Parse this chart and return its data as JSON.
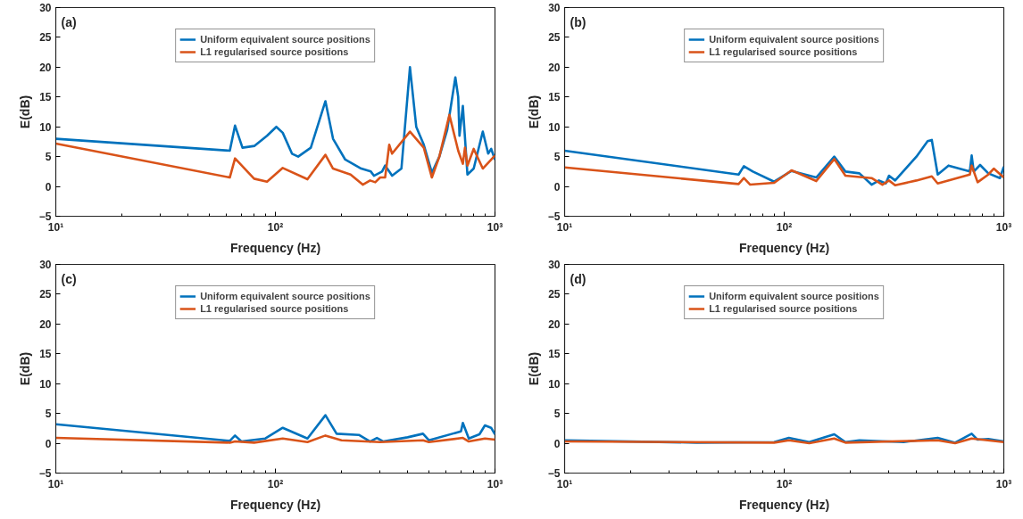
{
  "chart_data": [
    {
      "type": "line",
      "annotations": [
        "(a)"
      ],
      "xlabel": "Frequency (Hz)",
      "ylabel": "E(dB)",
      "log": "x",
      "xlim": [
        10,
        1000
      ],
      "ylim": [
        -5,
        30
      ],
      "xticks": [
        {
          "value": 10,
          "label": "10¹"
        },
        {
          "value": 100,
          "label": "10²"
        },
        {
          "value": 1000,
          "label": "10³"
        }
      ],
      "yticks": [
        -5,
        0,
        5,
        10,
        15,
        20,
        25,
        30
      ],
      "grid": false,
      "legend": "top",
      "line_style": "solid",
      "marker": "none",
      "series": [
        {
          "name": "Uniform equivalent source positions",
          "color": "#0072bd",
          "x": [
            10,
            62,
            65.5,
            70.8,
            80.4,
            91.6,
            101,
            108,
            119,
            127,
            145,
            169,
            183,
            208,
            246,
            272,
            281,
            306,
            316,
            330,
            340,
            375,
            410,
            438,
            474,
            516,
            558,
            606,
            660,
            680,
            689,
            714,
            749,
            800,
            880,
            931,
            961,
            1000
          ],
          "values": [
            8,
            6,
            10.2,
            6.5,
            6.8,
            8.5,
            10,
            9,
            5.5,
            5,
            6.5,
            14.3,
            8,
            4.5,
            3,
            2.5,
            1.8,
            2.5,
            3.5,
            2.5,
            1.8,
            3,
            20,
            10,
            7,
            2.3,
            5,
            9.5,
            18.3,
            15,
            8.5,
            13.5,
            2,
            3,
            9.2,
            5.5,
            6.3,
            4.5
          ]
        },
        {
          "name": "L1 regularised source positions",
          "color": "#d95319",
          "x": [
            10,
            62,
            65.5,
            80,
            91.6,
            108,
            140,
            169,
            183,
            220,
            250,
            270,
            285,
            300,
            316,
            330,
            340,
            410,
            474,
            516,
            558,
            620,
            680,
            714,
            730,
            749,
            800,
            880,
            1000
          ],
          "values": [
            7.2,
            1.5,
            4.7,
            1.3,
            0.8,
            3.1,
            1.2,
            5.3,
            3,
            2,
            0.3,
            1,
            0.7,
            1.5,
            1.5,
            7,
            5.5,
            9.2,
            6.5,
            1.5,
            5,
            12,
            6,
            3.8,
            6.5,
            3.5,
            6.3,
            3,
            5.2
          ]
        }
      ]
    },
    {
      "type": "line",
      "annotations": [
        "(b)"
      ],
      "xlabel": "Frequency (Hz)",
      "ylabel": "E(dB)",
      "log": "x",
      "xlim": [
        10,
        1000
      ],
      "ylim": [
        -5,
        30
      ],
      "xticks": [
        {
          "value": 10,
          "label": "10¹"
        },
        {
          "value": 100,
          "label": "10²"
        },
        {
          "value": 1000,
          "label": "10³"
        }
      ],
      "yticks": [
        -5,
        0,
        5,
        10,
        15,
        20,
        25,
        30
      ],
      "grid": false,
      "legend": "top",
      "line_style": "solid",
      "marker": "none",
      "series": [
        {
          "name": "Uniform equivalent source positions",
          "color": "#0072bd",
          "x": [
            10,
            62,
            65.5,
            72,
            90,
            108,
            140,
            169,
            190,
            220,
            250,
            270,
            290,
            300,
            320,
            400,
            450,
            470,
            500,
            560,
            700,
            714,
            730,
            780,
            850,
            960,
            1000
          ],
          "values": [
            6,
            2,
            3.4,
            2.5,
            0.8,
            2.6,
            1.5,
            5,
            2.5,
            2.2,
            0.3,
            1,
            0.5,
            1.8,
            1,
            5,
            7.6,
            7.8,
            2,
            3.5,
            2.5,
            5.2,
            2.5,
            3.6,
            2.2,
            1.4,
            3.3
          ]
        },
        {
          "name": "L1 regularised source positions",
          "color": "#d95319",
          "x": [
            10,
            62,
            65.5,
            70,
            90,
            108,
            140,
            169,
            190,
            250,
            280,
            300,
            320,
            400,
            470,
            500,
            700,
            714,
            760,
            850,
            900,
            1000
          ],
          "values": [
            3.2,
            0.4,
            1.4,
            0.3,
            0.6,
            2.7,
            0.9,
            4.6,
            1.8,
            1.4,
            0.3,
            1,
            0.2,
            1,
            1.7,
            0.5,
            2,
            3.5,
            0.7,
            2,
            3,
            1.5
          ]
        }
      ]
    },
    {
      "type": "line",
      "annotations": [
        "(c)"
      ],
      "xlabel": "Frequency (Hz)",
      "ylabel": "E(dB)",
      "log": "x",
      "xlim": [
        10,
        1000
      ],
      "ylim": [
        -5,
        30
      ],
      "xticks": [
        {
          "value": 10,
          "label": "10¹"
        },
        {
          "value": 100,
          "label": "10²"
        },
        {
          "value": 1000,
          "label": "10³"
        }
      ],
      "yticks": [
        -5,
        0,
        5,
        10,
        15,
        20,
        25,
        30
      ],
      "grid": false,
      "legend": "top",
      "line_style": "solid",
      "marker": "none",
      "series": [
        {
          "name": "Uniform equivalent source positions",
          "color": "#0072bd",
          "x": [
            10,
            62,
            65.5,
            70,
            90,
            108,
            140,
            169,
            190,
            240,
            270,
            290,
            310,
            400,
            470,
            500,
            700,
            714,
            760,
            850,
            900,
            960,
            1000
          ],
          "values": [
            3.2,
            0.4,
            1.3,
            0.3,
            0.8,
            2.6,
            0.8,
            4.7,
            1.6,
            1.4,
            0.3,
            0.9,
            0.3,
            1,
            1.6,
            0.5,
            2,
            3.4,
            0.8,
            1.5,
            3,
            2.6,
            1.5
          ]
        },
        {
          "name": "L1 regularised source positions",
          "color": "#d95319",
          "x": [
            10,
            62,
            65.5,
            80,
            108,
            140,
            169,
            200,
            300,
            470,
            500,
            714,
            760,
            900,
            1000
          ],
          "values": [
            0.9,
            0.1,
            0.3,
            0.1,
            0.8,
            0.2,
            1.3,
            0.5,
            0.2,
            0.5,
            0.2,
            0.9,
            0.3,
            0.8,
            0.6
          ]
        }
      ]
    },
    {
      "type": "line",
      "annotations": [
        "(d)"
      ],
      "xlabel": "Frequency (Hz)",
      "ylabel": "E(dB)",
      "log": "x",
      "xlim": [
        10,
        1000
      ],
      "ylim": [
        -5,
        30
      ],
      "xticks": [
        {
          "value": 10,
          "label": "10¹"
        },
        {
          "value": 100,
          "label": "10²"
        },
        {
          "value": 1000,
          "label": "10³"
        }
      ],
      "yticks": [
        -5,
        0,
        5,
        10,
        15,
        20,
        25,
        30
      ],
      "grid": false,
      "legend": "top",
      "line_style": "solid",
      "marker": "none",
      "series": [
        {
          "name": "Uniform equivalent source positions",
          "color": "#0072bd",
          "x": [
            10,
            40,
            90,
            105,
            130,
            169,
            190,
            220,
            350,
            500,
            600,
            714,
            760,
            850,
            1000
          ],
          "values": [
            0.5,
            0.1,
            0.2,
            0.9,
            0.2,
            1.5,
            0.2,
            0.5,
            0.2,
            0.9,
            0.1,
            1.6,
            0.6,
            0.7,
            0.3
          ]
        },
        {
          "name": "L1 regularised source positions",
          "color": "#d95319",
          "x": [
            10,
            90,
            105,
            130,
            169,
            190,
            500,
            600,
            714,
            1000
          ],
          "values": [
            0.3,
            0.1,
            0.5,
            0,
            0.8,
            0.1,
            0.5,
            0,
            0.8,
            0.2
          ]
        }
      ]
    }
  ]
}
